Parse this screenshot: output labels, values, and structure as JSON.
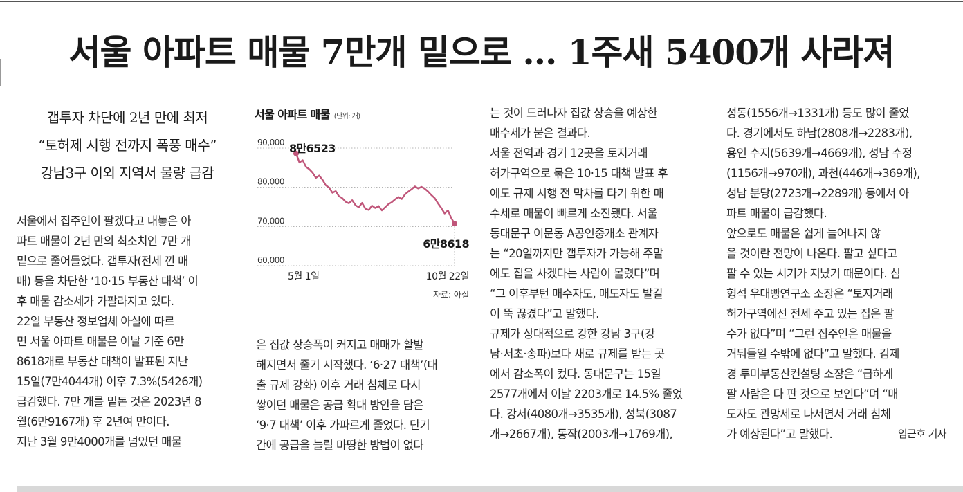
{
  "headline": "서울 아파트 매물 7만개 밑으로 … 1주새 5400개 사라져",
  "subheads": [
    "갭투자 차단에 2년 만에 최저",
    "“토허제 시행 전까지 폭풍 매수”",
    "강남3구 이외 지역서 물량 급감"
  ],
  "columns": {
    "col1": [
      "서울에서 집주인이 팔겠다고 내놓은 아",
      "파트 매물이 2년 만의 최소치인 7만 개",
      "밑으로 줄어들었다. 갭투자(전세 낀 매",
      "매) 등을 차단한 ‘10·15 부동산 대책’ 이",
      "후 매물 감소세가 가팔라지고 있다.",
      "  22일 부동산 정보업체 아실에 따르",
      "면 서울 아파트 매물은 이날 기준 6만",
      "8618개로 부동산 대책이 발표된 지난",
      "15일(7만4044개) 이후 7.3%(5426개)",
      "급감했다. 7만 개를 밑돈 것은 2023년 8",
      "월(6만9167개) 후 2년여 만이다.",
      "  지난 3월 9만4000개를 넘었던 매물"
    ],
    "col2": [
      "은 집값 상승폭이 커지고 매매가 활발",
      "해지면서 줄기 시작했다. ‘6·27 대책’(대",
      "출 규제 강화) 이후 거래 침체로 다시",
      "쌓이던 매물은 공급 확대 방안을 담은",
      "‘9·7 대책’ 이후 가파르게 줄었다. 단기",
      "간에 공급을 늘릴 마땅한 방법이 없다"
    ],
    "col3": [
      "는 것이 드러나자 집값 상승을 예상한",
      "매수세가 붙은 결과다.",
      "  서울 전역과 경기 12곳을 토지거래",
      "허가구역으로 묶은 10·15 대책 발표 후",
      "에도 규제 시행 전 막차를 타기 위한 매",
      "수세로 매물이 빠르게 소진됐다. 서울",
      "동대문구 이문동 A공인중개소 관계자",
      "는 “20일까지만 갭투자가 가능해 주말",
      "에도 집을 사겠다는 사람이 몰렸다”며",
      "“그 이후부턴 매수자도, 매도자도 발길",
      "이 뚝 끊겼다”고 말했다.",
      "  규제가 상대적으로 강한 강남 3구(강",
      "남·서초·송파)보다 새로 규제를 받는 곳",
      "에서 감소폭이 컸다. 동대문구는 15일",
      "2577개에서 이날 2203개로 14.5% 줄었",
      "다. 강서(4080개→3535개), 성북(3087",
      "개→2667개), 동작(2003개→1769개),"
    ],
    "col4": [
      "성동(1556개→1331개) 등도 많이 줄었",
      "다. 경기에서도 하남(2808개→2283개),",
      "용인 수지(5639개→4669개), 성남 수정",
      "(1156개→970개), 과천(446개→369개),",
      "성남 분당(2723개→2289개) 등에서 아",
      "파트 매물이 급감했다.",
      "  앞으로도 매물은 쉽게 늘어나지 않",
      "을 것이란 전망이 나온다. 팔고 싶다고",
      "팔 수 있는 시기가 지났기 때문이다. 심",
      "형석 우대빵연구소 소장은 “토지거래",
      "허가구역에선 전세 주고 있는 집은 팔",
      "수가 없다”며 “그런 집주인은 매물을",
      "거둬들일 수밖에 없다”고 말했다. 김제",
      "경 투미부동산컨설팅 소장은 “급하게",
      "팔 사람은 다 판 것으로 보인다”며 “매",
      "도자도 관망세로 나서면서 거래 침체",
      "가 예상된다”고 말했다."
    ],
    "byline": "임근호 기자"
  },
  "chart": {
    "title": "서울 아파트 매물",
    "unit": "(단위: 개)",
    "source": "자료: 아실",
    "start_label": "8만6523",
    "end_label": "6만8618",
    "line_color": "#c0567a"
  },
  "chart_data": {
    "type": "line",
    "title": "서울 아파트 매물",
    "ylabel": "",
    "ylim": [
      60000,
      90000
    ],
    "yticks": [
      "90,000",
      "80,000",
      "70,000",
      "60,000"
    ],
    "xticks": [
      "5월 1일",
      "10월 22일"
    ],
    "series": [
      {
        "values": [
          86523,
          84200,
          84800,
          83100,
          82500,
          81600,
          80300,
          80900,
          79800,
          78400,
          77800,
          76500,
          76900,
          75600,
          75100,
          74200,
          73800,
          74600,
          73300,
          72800,
          73900,
          72400,
          72100,
          73200,
          72600,
          73100,
          72000,
          72800,
          73600,
          74100,
          74800,
          75400,
          74900,
          76100,
          76800,
          77400,
          78100,
          77600,
          78000,
          77500,
          76800,
          75900,
          75100,
          73800,
          72600,
          71200,
          72000,
          70100,
          68618
        ]
      }
    ]
  }
}
